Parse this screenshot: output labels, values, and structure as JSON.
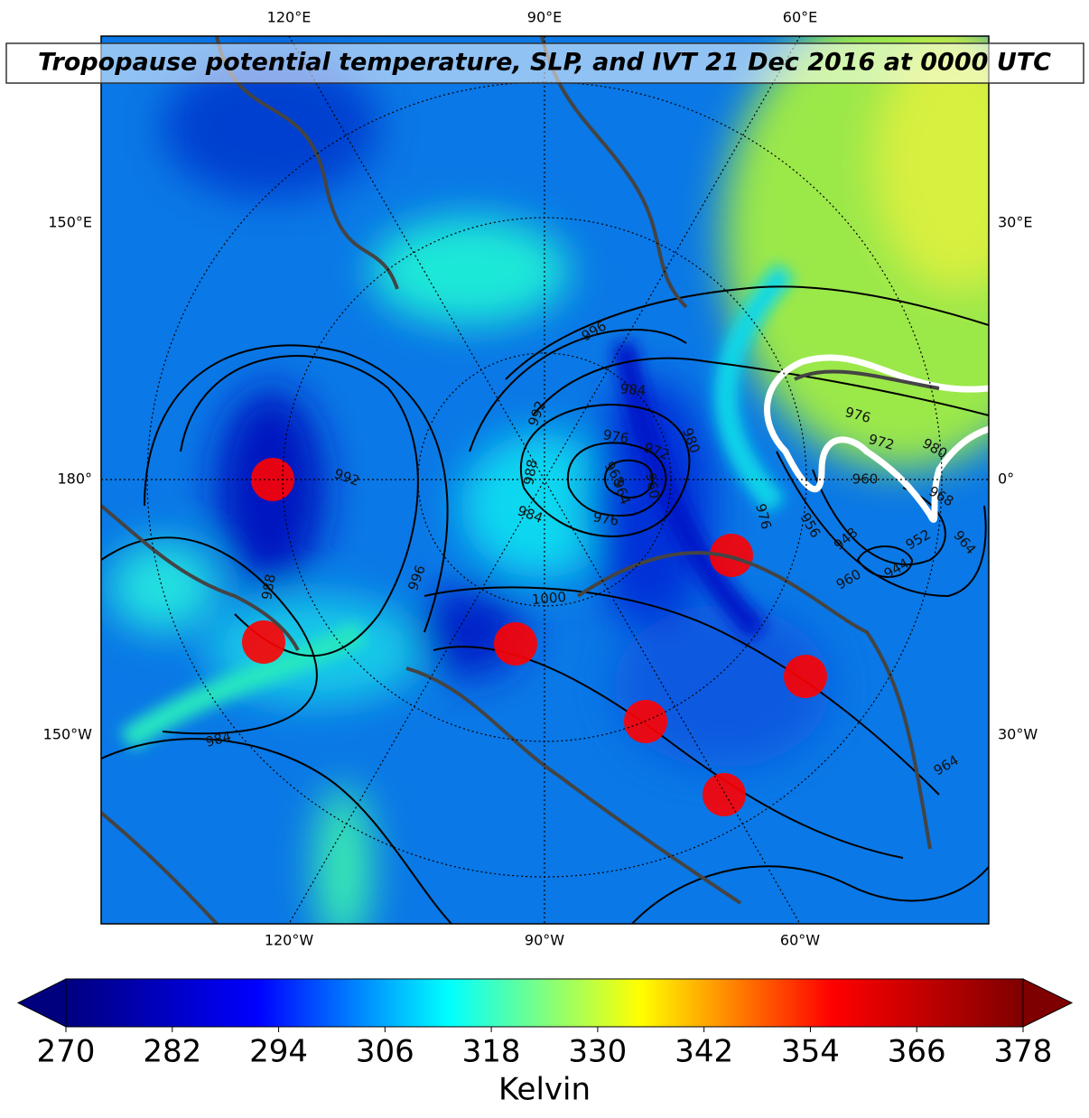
{
  "chart_data": {
    "type": "map",
    "title": "Tropopause potential temperature, SLP, and IVT 21 Dec 2016 at 0000 UTC",
    "top_labels": [
      "120°E",
      "90°E",
      "60°E"
    ],
    "bottom_labels": [
      "120°W",
      "90°W",
      "60°W"
    ],
    "left_labels": [
      "150°E",
      "180°",
      "150°W"
    ],
    "right_labels": [
      "30°E",
      "0°",
      "30°W"
    ],
    "contour_labels": [
      996,
      984,
      992,
      988,
      980,
      976,
      972,
      968,
      964,
      960,
      976,
      972,
      980,
      960,
      968,
      964,
      956,
      948,
      952,
      944,
      960,
      1000,
      996,
      988,
      992,
      984,
      964,
      976,
      984,
      976
    ],
    "colorbar": {
      "label": "Kelvin",
      "range": [
        270,
        378
      ],
      "ticks": [
        270,
        282,
        294,
        306,
        318,
        330,
        342,
        354,
        366,
        378
      ],
      "colors": [
        "#00007f",
        "#0000ff",
        "#00ffff",
        "#ffff00",
        "#ff0000",
        "#7f0000"
      ]
    }
  }
}
